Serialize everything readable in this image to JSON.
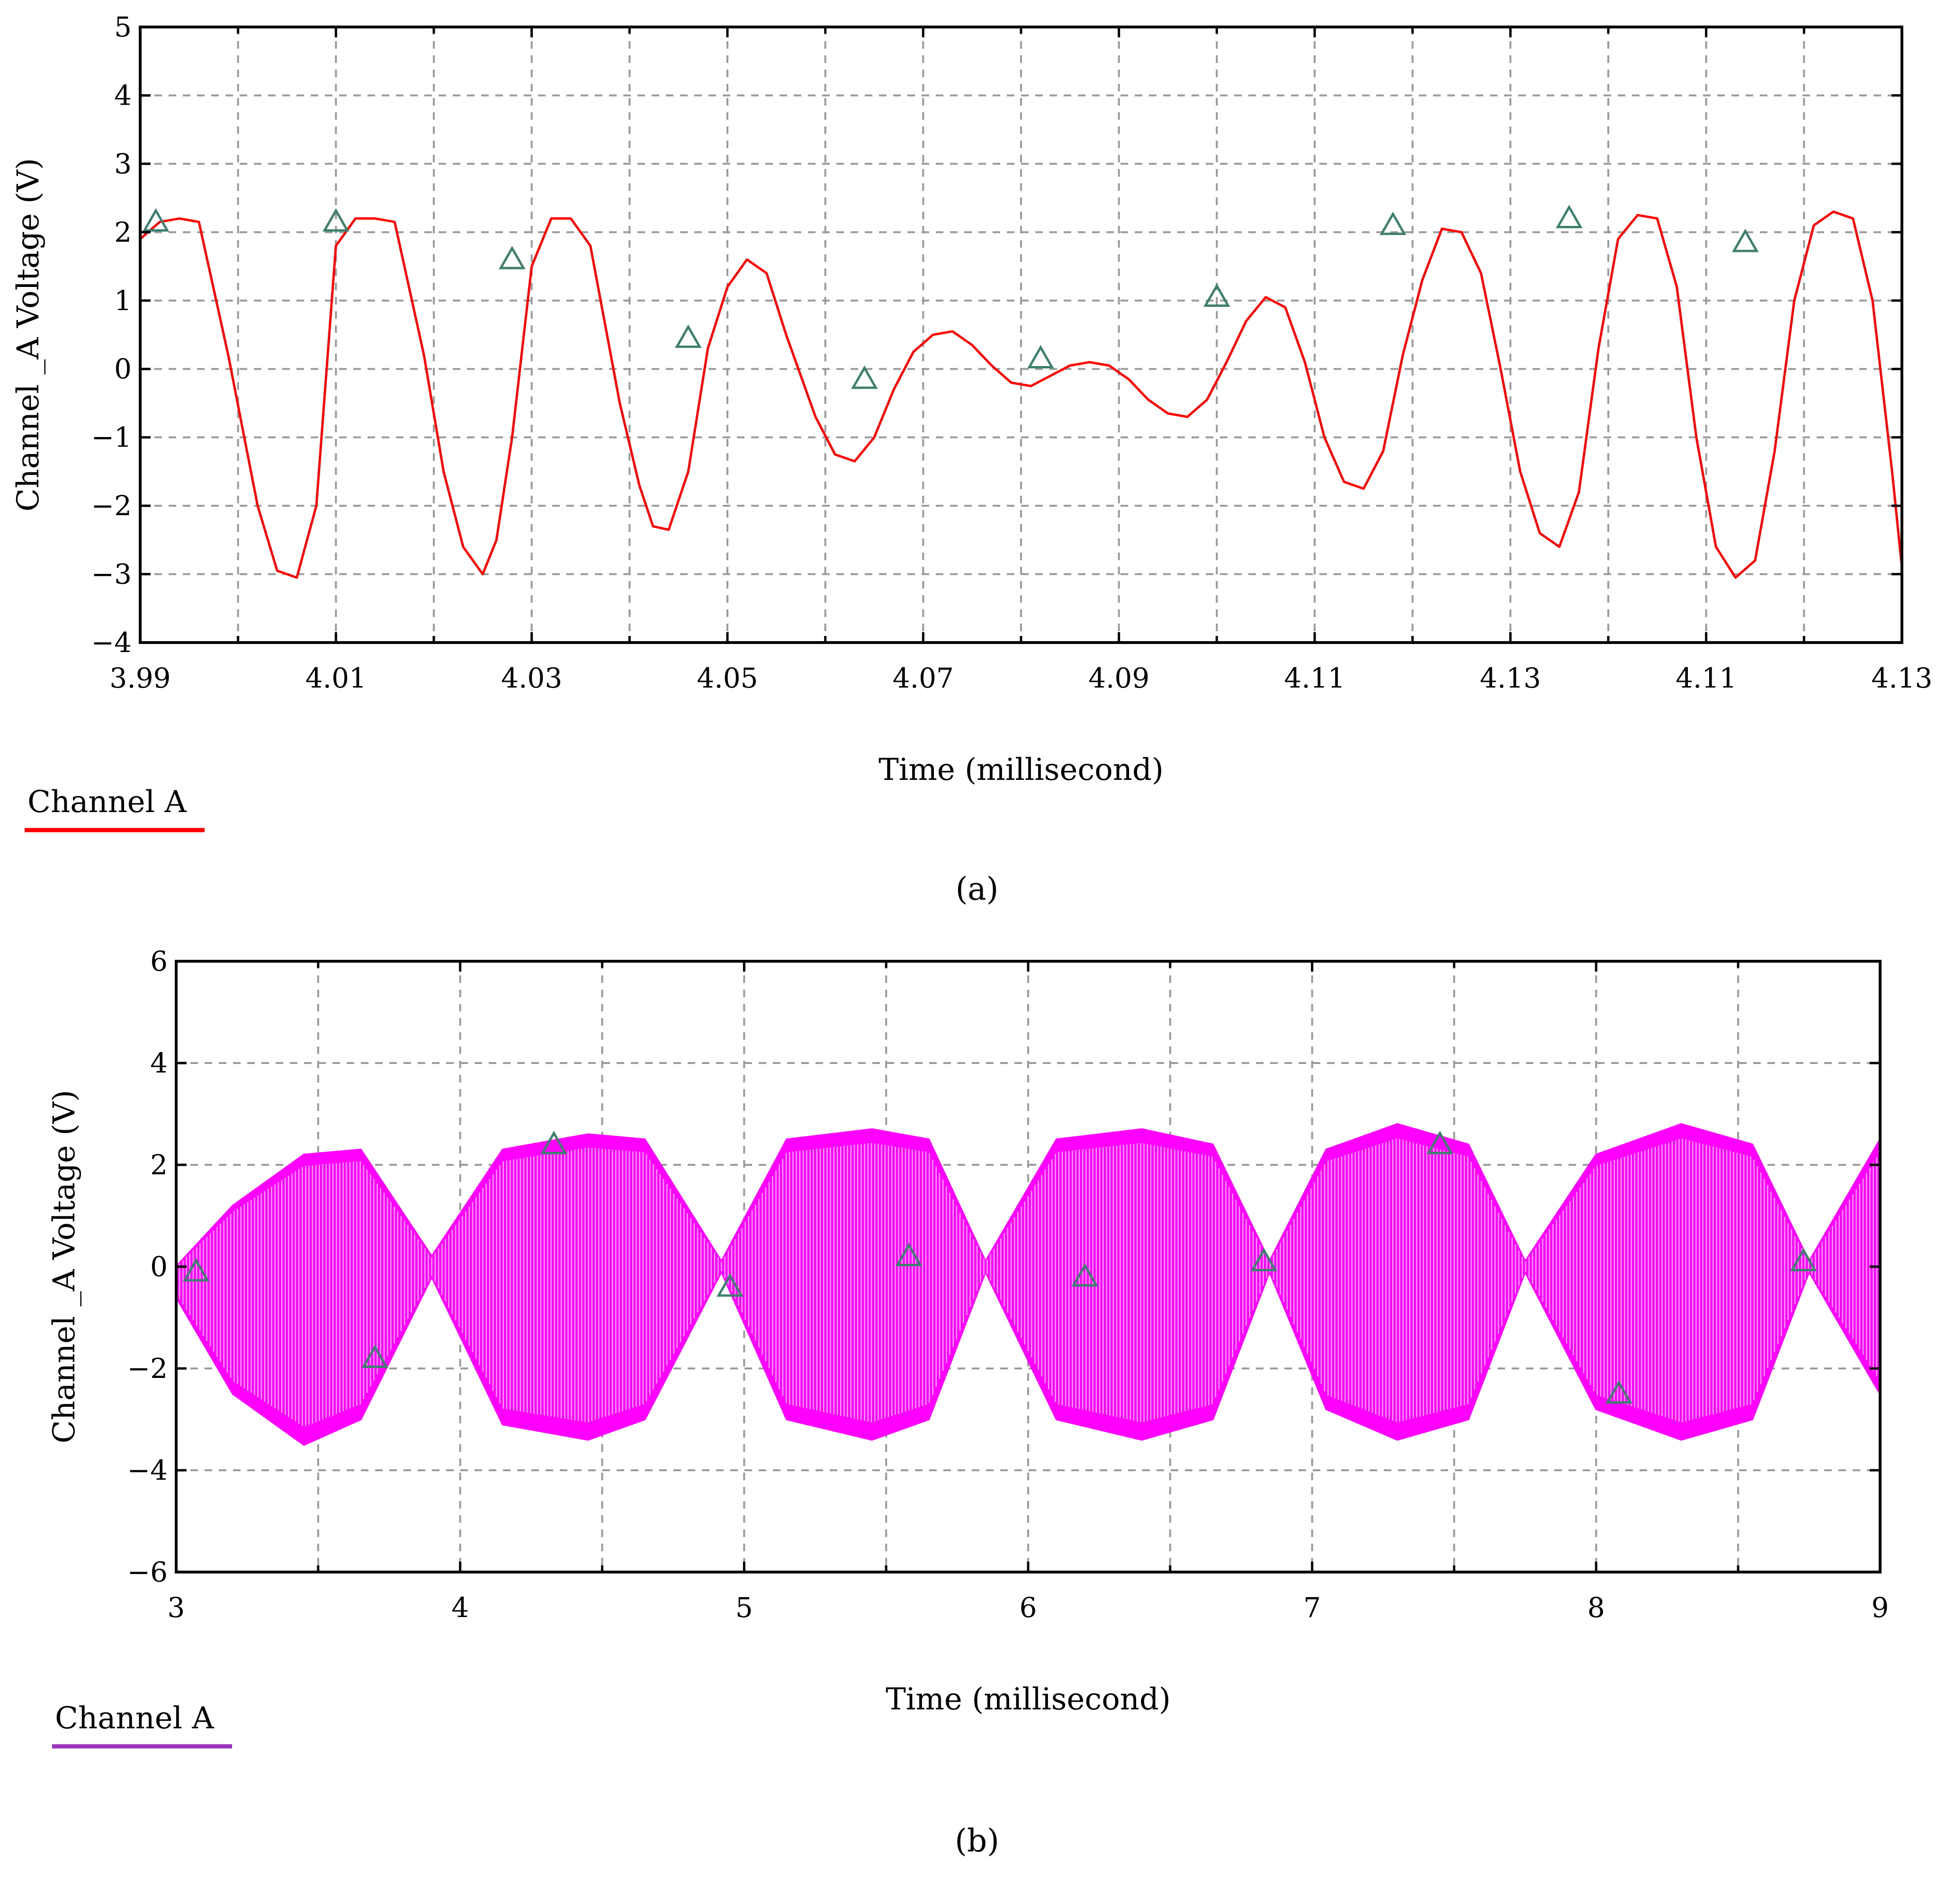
{
  "chart_data": [
    {
      "panel": "a",
      "type": "line",
      "xlabel": "Time (millisecond)",
      "ylabel": "Channel _A Voltage (V)",
      "x_tick_labels": [
        "3.99",
        "4.01",
        "4.03",
        "4.05",
        "4.07",
        "4.09",
        "4.11",
        "4.13",
        "4.11",
        "4.13"
      ],
      "xlim": [
        0,
        9
      ],
      "xlim_note_units": "x given in tick-label index units (labels are non-monotonic)",
      "ylim": [
        -4,
        5
      ],
      "y_ticks": [
        -4,
        -3,
        -2,
        -1,
        0,
        1,
        2,
        3,
        4,
        5
      ],
      "y_tick_labels": [
        "−4",
        "−3",
        "−2",
        "−1",
        "0",
        "1",
        "2",
        "3",
        "4",
        "5"
      ],
      "grid": true,
      "legend": {
        "label": "Channel A",
        "color": "#ff0000",
        "placement": "bottom-left"
      },
      "series": [
        {
          "name": "Channel A",
          "color": "#ff0000",
          "x": [
            0,
            0.1,
            0.2,
            0.3,
            0.45,
            0.6,
            0.7,
            0.8,
            0.9,
            1.0,
            1.1,
            1.2,
            1.3,
            1.45,
            1.55,
            1.65,
            1.75,
            1.82,
            1.9,
            2.0,
            2.1,
            2.2,
            2.3,
            2.45,
            2.55,
            2.62,
            2.7,
            2.8,
            2.9,
            3.0,
            3.1,
            3.2,
            3.3,
            3.45,
            3.55,
            3.65,
            3.75,
            3.85,
            3.95,
            4.05,
            4.15,
            4.25,
            4.35,
            4.45,
            4.55,
            4.65,
            4.75,
            4.85,
            4.95,
            5.05,
            5.15,
            5.25,
            5.35,
            5.45,
            5.55,
            5.65,
            5.75,
            5.85,
            5.95,
            6.05,
            6.15,
            6.25,
            6.35,
            6.45,
            6.55,
            6.65,
            6.75,
            6.85,
            6.95,
            7.05,
            7.15,
            7.25,
            7.35,
            7.45,
            7.55,
            7.65,
            7.75,
            7.85,
            7.95,
            8.05,
            8.15,
            8.25,
            8.35,
            8.45,
            8.55,
            8.65,
            8.75,
            8.85,
            8.95,
            9.0
          ],
          "y": [
            1.9,
            2.15,
            2.2,
            2.15,
            0.2,
            -2.0,
            -2.95,
            -3.05,
            -2.0,
            1.8,
            2.2,
            2.2,
            2.15,
            0.2,
            -1.5,
            -2.6,
            -3.0,
            -2.5,
            -1.0,
            1.5,
            2.2,
            2.2,
            1.8,
            -0.5,
            -1.7,
            -2.3,
            -2.35,
            -1.5,
            0.3,
            1.2,
            1.6,
            1.4,
            0.5,
            -0.7,
            -1.25,
            -1.35,
            -1.0,
            -0.3,
            0.25,
            0.5,
            0.55,
            0.35,
            0.05,
            -0.2,
            -0.25,
            -0.1,
            0.05,
            0.1,
            0.05,
            -0.15,
            -0.45,
            -0.65,
            -0.7,
            -0.45,
            0.1,
            0.7,
            1.05,
            0.9,
            0.1,
            -1.0,
            -1.65,
            -1.75,
            -1.2,
            0.2,
            1.3,
            2.05,
            2.0,
            1.4,
            0.0,
            -1.5,
            -2.4,
            -2.6,
            -1.8,
            0.3,
            1.9,
            2.25,
            2.2,
            1.2,
            -1.0,
            -2.6,
            -3.05,
            -2.8,
            -1.2,
            1.0,
            2.1,
            2.3,
            2.2,
            1.0,
            -1.5,
            -2.9
          ]
        }
      ],
      "markers": {
        "shape": "triangle",
        "x": [
          0.08,
          1.0,
          1.9,
          2.8,
          3.7,
          4.6,
          5.5,
          6.4,
          7.3,
          8.2
        ],
        "y": [
          2.15,
          2.15,
          1.6,
          0.45,
          -0.15,
          0.15,
          1.05,
          2.1,
          2.2,
          1.85
        ]
      }
    },
    {
      "panel": "b",
      "type": "line",
      "xlabel": "Time (millisecond)",
      "ylabel": "Channel _A Voltage (V)",
      "xlim": [
        3,
        9
      ],
      "x_ticks": [
        3,
        4,
        5,
        6,
        7,
        8,
        9
      ],
      "x_tick_labels": [
        "3",
        "4",
        "5",
        "6",
        "7",
        "8",
        "9"
      ],
      "ylim": [
        -6,
        6
      ],
      "y_ticks": [
        -6,
        -4,
        -2,
        0,
        2,
        4,
        6
      ],
      "y_tick_labels": [
        "−6",
        "−4",
        "−2",
        "0",
        "2",
        "4",
        "6"
      ],
      "grid": true,
      "legend": {
        "label": "Channel A",
        "color": "#9933bb",
        "placement": "bottom-left"
      },
      "series": [
        {
          "name": "Channel A",
          "color": "#ff00ff",
          "envelope_x": [
            3.0,
            3.2,
            3.45,
            3.65,
            3.9,
            4.15,
            4.45,
            4.65,
            4.92,
            5.15,
            5.45,
            5.65,
            5.85,
            6.1,
            6.4,
            6.65,
            6.85,
            7.05,
            7.3,
            7.55,
            7.75,
            8.0,
            8.3,
            8.55,
            8.75,
            9.0
          ],
          "envelope_upper": [
            0.0,
            1.2,
            2.2,
            2.3,
            0.2,
            2.3,
            2.6,
            2.5,
            0.1,
            2.5,
            2.7,
            2.5,
            0.1,
            2.5,
            2.7,
            2.4,
            0.1,
            2.3,
            2.8,
            2.4,
            0.1,
            2.2,
            2.8,
            2.4,
            0.1,
            2.5
          ],
          "envelope_lower": [
            -0.6,
            -2.5,
            -3.5,
            -3.0,
            -0.2,
            -3.1,
            -3.4,
            -3.0,
            -0.1,
            -3.0,
            -3.4,
            -3.0,
            -0.1,
            -3.0,
            -3.4,
            -3.0,
            -0.1,
            -2.8,
            -3.4,
            -3.0,
            -0.1,
            -2.8,
            -3.4,
            -3.0,
            -0.1,
            -2.5
          ]
        }
      ],
      "markers": {
        "shape": "triangle",
        "x": [
          3.07,
          3.7,
          4.33,
          4.95,
          5.58,
          6.2,
          6.83,
          7.45,
          8.08,
          8.73
        ],
        "y": [
          -0.1,
          -1.8,
          2.4,
          -0.4,
          0.2,
          -0.2,
          0.1,
          2.4,
          -2.5,
          0.1
        ]
      }
    }
  ],
  "panel_labels": [
    "(a)",
    "(b)"
  ],
  "colors": {
    "grid": "#9a9a9a",
    "marker": "#3f7f6f",
    "axis": "#000000"
  }
}
